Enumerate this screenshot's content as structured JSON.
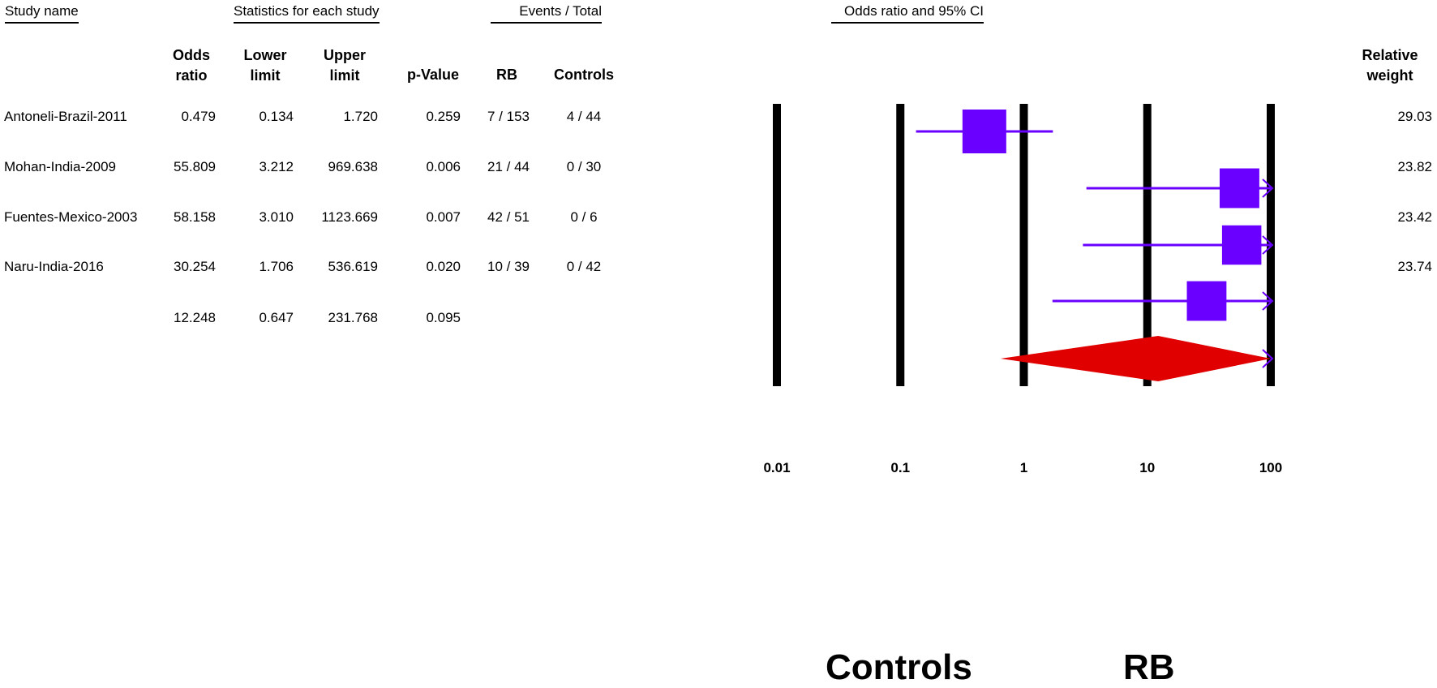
{
  "headers": {
    "study_name": "Study name",
    "statistics": "Statistics for each study",
    "events": "Events / Total",
    "or_ci": "Odds ratio and 95% CI"
  },
  "columns": {
    "odds_ratio": [
      "Odds",
      "ratio"
    ],
    "lower": [
      "Lower",
      "limit"
    ],
    "upper": [
      "Upper",
      "limit"
    ],
    "pvalue": "p-Value",
    "rb": "RB",
    "controls": "Controls",
    "weight": [
      "Relative",
      "weight"
    ]
  },
  "rows": [
    {
      "study": "Antoneli-Brazil-2011",
      "or": "0.479",
      "lower": "0.134",
      "upper": "1.720",
      "p": "0.259",
      "rb": "7 / 153",
      "controls": "4 / 44",
      "weight": "29.03"
    },
    {
      "study": "Mohan-India-2009",
      "or": "55.809",
      "lower": "3.212",
      "upper": "969.638",
      "p": "0.006",
      "rb": "21 / 44",
      "controls": "0 / 30",
      "weight": "23.82"
    },
    {
      "study": "Fuentes-Mexico-2003",
      "or": "58.158",
      "lower": "3.010",
      "upper": "1123.669",
      "p": "0.007",
      "rb": "42 / 51",
      "controls": "0 / 6",
      "weight": "23.42"
    },
    {
      "study": "Naru-India-2016",
      "or": "30.254",
      "lower": "1.706",
      "upper": "536.619",
      "p": "0.020",
      "rb": "10 / 39",
      "controls": "0 / 42",
      "weight": "23.74"
    }
  ],
  "summary": {
    "or": "12.248",
    "lower": "0.647",
    "upper": "231.768",
    "p": "0.095"
  },
  "footer": {
    "left_label": "Controls",
    "right_label": "RB"
  },
  "chart_data": {
    "type": "forest",
    "x_scale": "log",
    "xlim": [
      0.01,
      100
    ],
    "x_ticks": [
      "0.01",
      "0.1",
      "1",
      "10",
      "100"
    ],
    "tick_values": [
      0.01,
      0.1,
      1,
      10,
      100
    ],
    "studies": [
      {
        "or": 0.479,
        "lower": 0.134,
        "upper": 1.72,
        "weight": 29.03
      },
      {
        "or": 55.809,
        "lower": 3.212,
        "upper": 969.638,
        "weight": 23.82
      },
      {
        "or": 58.158,
        "lower": 3.01,
        "upper": 1123.669,
        "weight": 23.42
      },
      {
        "or": 30.254,
        "lower": 1.706,
        "upper": 536.619,
        "weight": 23.74
      }
    ],
    "summary": {
      "or": 12.248,
      "lower": 0.647,
      "upper": 231.768
    },
    "colors": {
      "study": "#6a00ff",
      "summary": "#e00000",
      "lines": "#000000"
    }
  }
}
